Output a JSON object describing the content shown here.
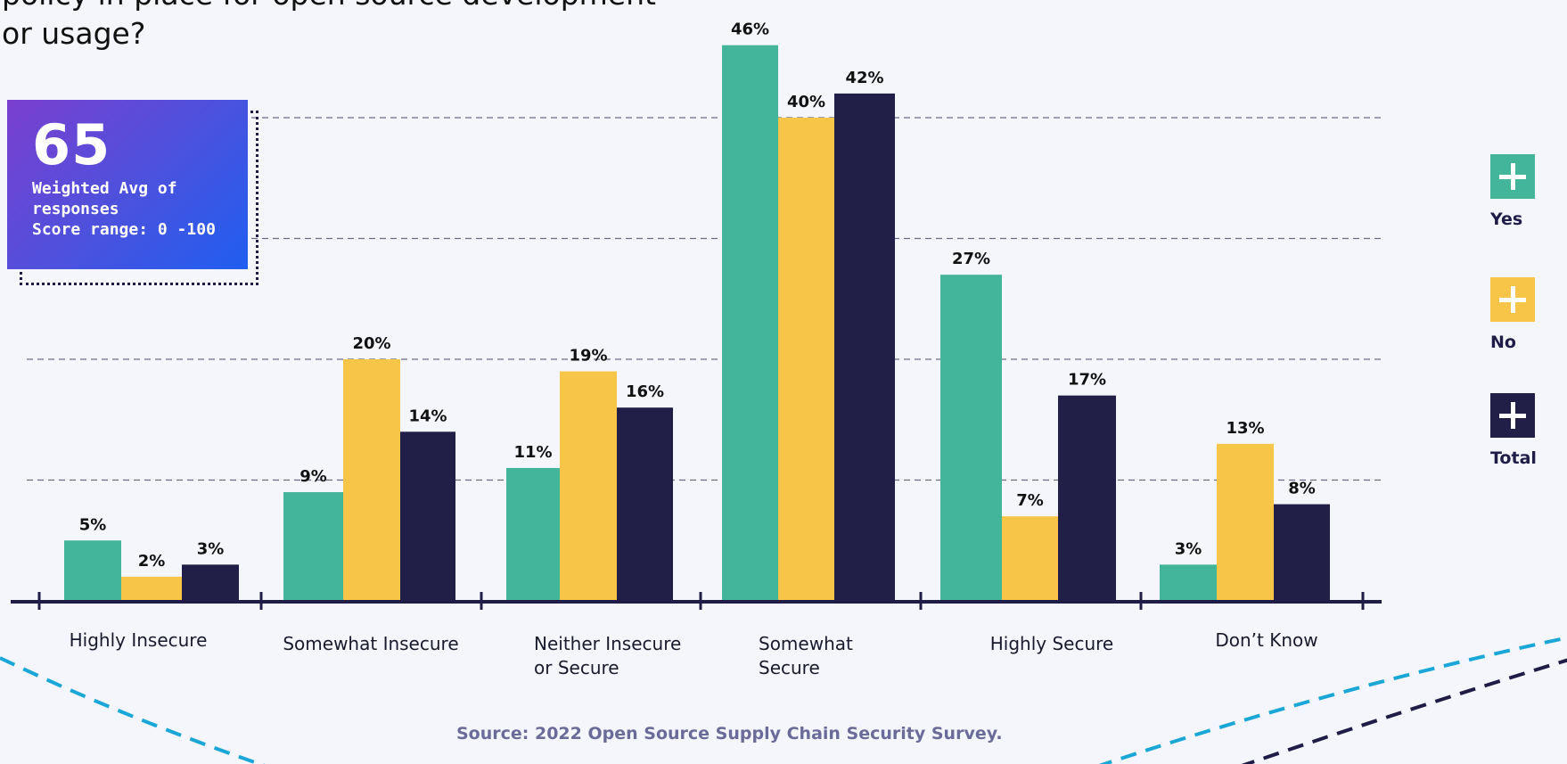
{
  "title_lines": [
    "policy in place for open source development",
    "or usage?"
  ],
  "score_card": {
    "value": "65",
    "lines": [
      "Weighted Avg of",
      "responses",
      "Score range: 0 -100"
    ]
  },
  "source": "Source: 2022 Open Source Supply Chain Security Survey.",
  "colors": {
    "yes": "#43b59b",
    "no": "#f7c548",
    "total": "#211f48",
    "axis": "#1f1d47",
    "grid": "#6b6b86",
    "arc_blue": "#1aa7d7",
    "arc_navy": "#1f1d47"
  },
  "legend": [
    {
      "label": "Yes",
      "icon": "plus-icon",
      "color": "#43b59b"
    },
    {
      "label": "No",
      "icon": "plus-icon",
      "color": "#f7c548"
    },
    {
      "label": "Total",
      "icon": "plus-icon",
      "color": "#211f48"
    }
  ],
  "chart_data": {
    "type": "bar",
    "title": "",
    "xlabel": "",
    "ylabel": "",
    "ylim": [
      0,
      50
    ],
    "grid": true,
    "legend_position": "right",
    "categories": [
      [
        "Highly Insecure"
      ],
      [
        "Somewhat Insecure"
      ],
      [
        "Neither Insecure",
        "or Secure"
      ],
      [
        "Somewhat",
        "Secure"
      ],
      [
        "Highly Secure"
      ],
      [
        "Don’t Know"
      ]
    ],
    "series": [
      {
        "name": "Yes",
        "color": "#43b59b",
        "values": [
          5,
          9,
          11,
          46,
          27,
          3
        ],
        "labels": [
          "5%",
          "9%",
          "11%",
          "46%",
          "27%",
          "3%"
        ]
      },
      {
        "name": "No",
        "color": "#f7c548",
        "values": [
          2,
          20,
          19,
          40,
          7,
          13
        ],
        "labels": [
          "2%",
          "20%",
          "19%",
          "40%",
          "7%",
          "13%"
        ]
      },
      {
        "name": "Total",
        "color": "#211f48",
        "values": [
          3,
          14,
          16,
          42,
          17,
          8
        ],
        "labels": [
          "3%",
          "14%",
          "16%",
          "42%",
          "17%",
          "8%"
        ]
      }
    ]
  }
}
